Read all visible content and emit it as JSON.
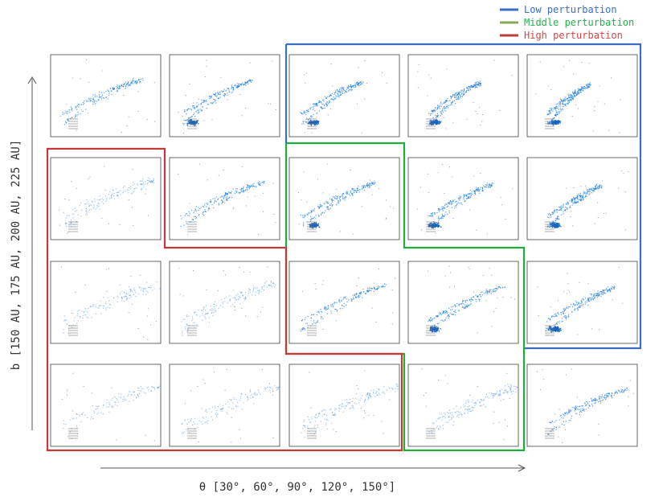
{
  "legend": {
    "items": [
      {
        "key": "low",
        "label": "Low perturbation",
        "color": "#3a6fc4"
      },
      {
        "key": "middle",
        "label": "Middle perturbation",
        "color": "#22b14c"
      },
      {
        "key": "high",
        "label": "High perturbation",
        "color": "#d64545"
      }
    ]
  },
  "colors": {
    "low_region": "#3a6fc4",
    "middle_region": "#1fae3c",
    "high_region": "#c23b3b",
    "particles": "#1f7fe0",
    "debris": "#333333"
  },
  "chart_data": {
    "type": "scatter",
    "grid_rows": 4,
    "grid_cols": 5,
    "xlabel": "θ [30°, 60°, 90°, 120°, 150°]",
    "ylabel": "b [150 AU, 175 AU, 200 AU, 225 AU]",
    "theta_values_deg": [
      30,
      60,
      90,
      120,
      150
    ],
    "b_values_au": [
      150,
      175,
      200,
      225
    ],
    "panels_rows_top_to_bottom_b_au": [
      225,
      200,
      175,
      150
    ],
    "regions": [
      {
        "name": "Low perturbation",
        "panels": [
          [
            0,
            2
          ],
          [
            0,
            3
          ],
          [
            0,
            4
          ],
          [
            1,
            3
          ],
          [
            1,
            4
          ],
          [
            2,
            4
          ]
        ]
      },
      {
        "name": "Middle perturbation",
        "panels": [
          [
            1,
            2
          ],
          [
            2,
            2
          ],
          [
            2,
            3
          ],
          [
            3,
            3
          ]
        ]
      },
      {
        "name": "High perturbation",
        "panels": [
          [
            1,
            0
          ],
          [
            1,
            1
          ],
          [
            2,
            0
          ],
          [
            2,
            1
          ],
          [
            3,
            0
          ],
          [
            3,
            1
          ],
          [
            3,
            2
          ]
        ]
      }
    ]
  }
}
